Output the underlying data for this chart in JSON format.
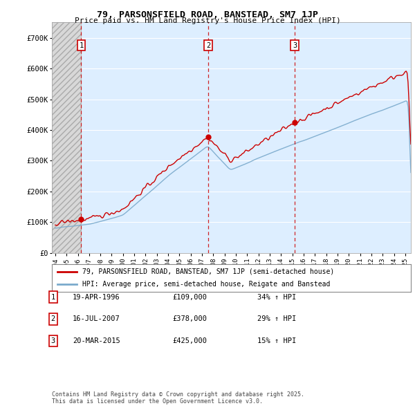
{
  "title_line1": "79, PARSONSFIELD ROAD, BANSTEAD, SM7 1JP",
  "title_line2": "Price paid vs. HM Land Registry's House Price Index (HPI)",
  "background_color": "#ffffff",
  "plot_bg_color": "#ddeeff",
  "grid_color": "#ffffff",
  "ylim": [
    0,
    750000
  ],
  "yticks": [
    0,
    100000,
    200000,
    300000,
    400000,
    500000,
    600000,
    700000
  ],
  "ytick_labels": [
    "£0",
    "£100K",
    "£200K",
    "£300K",
    "£400K",
    "£500K",
    "£600K",
    "£700K"
  ],
  "xlim_start": 1993.7,
  "xlim_end": 2025.5,
  "sale_dates_decimal": [
    1996.3,
    2007.54,
    2015.22
  ],
  "sale_prices": [
    109000,
    378000,
    425000
  ],
  "sale_labels": [
    "1",
    "2",
    "3"
  ],
  "legend_line1": "79, PARSONSFIELD ROAD, BANSTEAD, SM7 1JP (semi-detached house)",
  "legend_line2": "HPI: Average price, semi-detached house, Reigate and Banstead",
  "table_rows": [
    [
      "1",
      "19-APR-1996",
      "£109,000",
      "34% ↑ HPI"
    ],
    [
      "2",
      "16-JUL-2007",
      "£378,000",
      "29% ↑ HPI"
    ],
    [
      "3",
      "20-MAR-2015",
      "£425,000",
      "15% ↑ HPI"
    ]
  ],
  "footer": "Contains HM Land Registry data © Crown copyright and database right 2025.\nThis data is licensed under the Open Government Licence v3.0.",
  "red_line_color": "#cc0000",
  "blue_line_color": "#7aaacc",
  "hatch_region_end": 1996.3,
  "hatch_bg_color": "#d8d8d8"
}
